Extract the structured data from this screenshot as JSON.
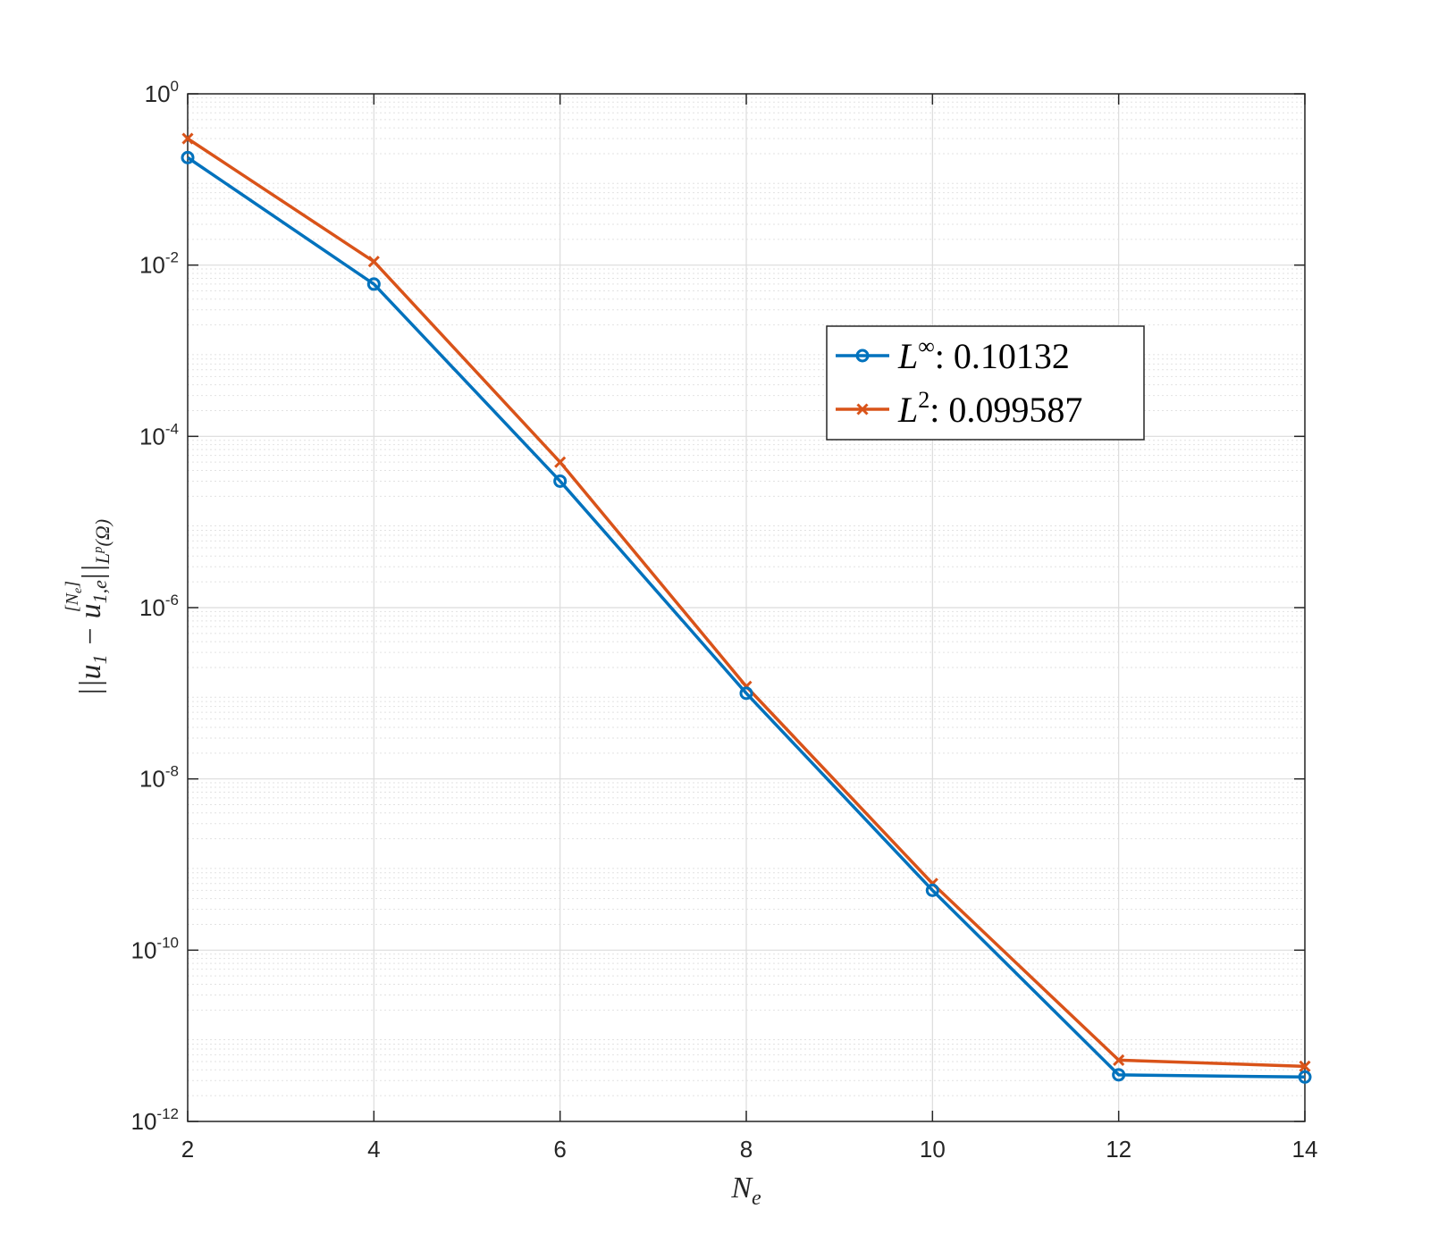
{
  "chart_data": {
    "type": "line",
    "x": [
      2,
      4,
      6,
      8,
      10,
      12,
      14
    ],
    "xlim": [
      2,
      14
    ],
    "ylim": [
      1e-12,
      1
    ],
    "yscale": "log",
    "xticks": [
      "2",
      "4",
      "6",
      "8",
      "10",
      "12",
      "14"
    ],
    "yticks": [
      {
        "base": "10",
        "exp": "0"
      },
      {
        "base": "10",
        "exp": "-2"
      },
      {
        "base": "10",
        "exp": "-4"
      },
      {
        "base": "10",
        "exp": "-6"
      },
      {
        "base": "10",
        "exp": "-8"
      },
      {
        "base": "10",
        "exp": "-10"
      },
      {
        "base": "10",
        "exp": "-12"
      }
    ],
    "xlabel": "N_e",
    "ylabel": "||u_1 − u_{1,e}^{[N_e]}||_{L^p(Ω)}",
    "grid": true,
    "minor_grid": true,
    "legend_position": "right-upper-middle",
    "series": [
      {
        "name": "L^∞: 0.10132",
        "name_base": "L",
        "name_sup": "∞",
        "name_rest": ": 0.10132",
        "color": "#0072BD",
        "marker": "circle",
        "values": [
          0.18,
          0.006,
          3e-05,
          1e-07,
          5e-10,
          3.5e-12,
          3.3e-12
        ]
      },
      {
        "name": "L^2: 0.099587",
        "name_base": "L",
        "name_sup": "2",
        "name_rest": ": 0.099587",
        "color": "#D95319",
        "marker": "x",
        "values": [
          0.3,
          0.011,
          5e-05,
          1.2e-07,
          6e-10,
          5.2e-12,
          4.4e-12
        ]
      }
    ]
  }
}
